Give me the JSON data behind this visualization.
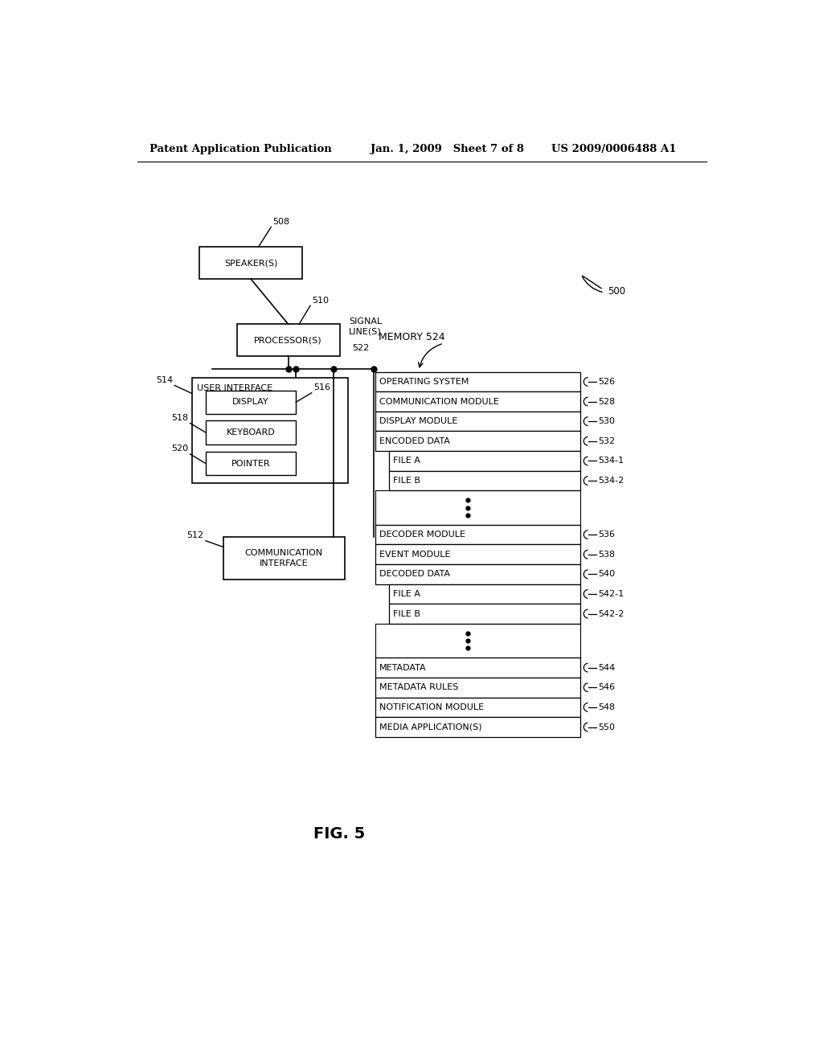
{
  "bg_color": "#ffffff",
  "header_left": "Patent Application Publication",
  "header_mid": "Jan. 1, 2009   Sheet 7 of 8",
  "header_right": "US 2009/0006488 A1",
  "fig_label": "FIG. 5",
  "fig_number": "500",
  "speaker_label": "SPEAKER(S)",
  "speaker_num": "508",
  "processor_label": "PROCESSOR(S)",
  "processor_num": "510",
  "signal_label": "SIGNAL\nLINE(S)",
  "signal_num": "522",
  "memory_label": "MEMORY 524",
  "ui_label": "USER INTERFACE",
  "ui_num": "514",
  "display_label": "DISPLAY",
  "display_num": "516",
  "keyboard_label": "KEYBOARD",
  "keyboard_num": "518",
  "pointer_label": "POINTER",
  "pointer_num": "520",
  "comm_iface_label": "COMMUNICATION\nINTERFACE",
  "comm_iface_num": "512",
  "memory_rows": [
    {
      "label": "OPERATING SYSTEM",
      "num": "526",
      "indent": false,
      "dots": false
    },
    {
      "label": "COMMUNICATION MODULE",
      "num": "528",
      "indent": false,
      "dots": false
    },
    {
      "label": "DISPLAY MODULE",
      "num": "530",
      "indent": false,
      "dots": false
    },
    {
      "label": "ENCODED DATA",
      "num": "532",
      "indent": false,
      "dots": false
    },
    {
      "label": "FILE A",
      "num": "534-1",
      "indent": true,
      "dots": false
    },
    {
      "label": "FILE B",
      "num": "534-2",
      "indent": true,
      "dots": false
    },
    {
      "label": "...",
      "num": "",
      "indent": true,
      "dots": true
    },
    {
      "label": "DECODER MODULE",
      "num": "536",
      "indent": false,
      "dots": false
    },
    {
      "label": "EVENT MODULE",
      "num": "538",
      "indent": false,
      "dots": false
    },
    {
      "label": "DECODED DATA",
      "num": "540",
      "indent": false,
      "dots": false
    },
    {
      "label": "FILE A",
      "num": "542-1",
      "indent": true,
      "dots": false
    },
    {
      "label": "FILE B",
      "num": "542-2",
      "indent": true,
      "dots": false
    },
    {
      "label": "...",
      "num": "",
      "indent": true,
      "dots": true
    },
    {
      "label": "METADATA",
      "num": "544",
      "indent": false,
      "dots": false
    },
    {
      "label": "METADATA RULES",
      "num": "546",
      "indent": false,
      "dots": false
    },
    {
      "label": "NOTIFICATION MODULE",
      "num": "548",
      "indent": false,
      "dots": false
    },
    {
      "label": "MEDIA APPLICATION(S)",
      "num": "550",
      "indent": false,
      "dots": false
    }
  ]
}
